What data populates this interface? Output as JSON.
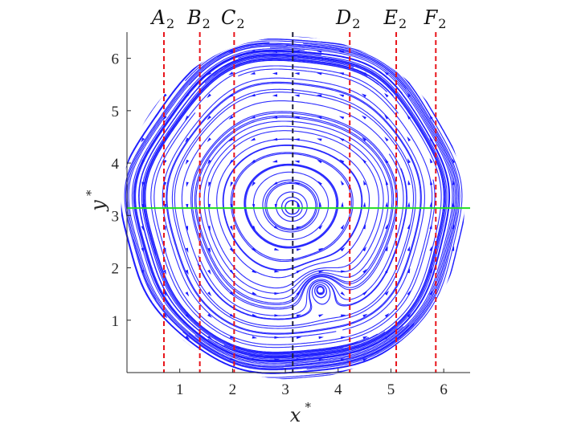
{
  "chart_data": {
    "type": "streamline",
    "xlabel": "x",
    "xlabel_superscript": "*",
    "ylabel": "y",
    "ylabel_superscript": "*",
    "xlim": [
      0,
      6.5
    ],
    "ylim": [
      0,
      6.5
    ],
    "xticks": [
      1,
      2,
      3,
      4,
      5,
      6
    ],
    "yticks": [
      1,
      2,
      3,
      4,
      5,
      6
    ],
    "grid": false,
    "streamline_color": "#1a1aff",
    "field_center": [
      3.14,
      3.14
    ],
    "field_radius": 3.25,
    "vortices": [
      {
        "center": [
          3.14,
          3.14
        ],
        "direction": "counterclockwise"
      },
      {
        "center": [
          3.65,
          1.62
        ],
        "direction": "clockwise"
      }
    ],
    "vertical_lines": [
      {
        "letter": "A",
        "sub": "2",
        "x": 0.7,
        "color": "#e8141a",
        "style": "dashed"
      },
      {
        "letter": "B",
        "sub": "2",
        "x": 1.38,
        "color": "#e8141a",
        "style": "dashed"
      },
      {
        "letter": "C",
        "sub": "2",
        "x": 2.03,
        "color": "#e8141a",
        "style": "dashed"
      },
      {
        "letter": "",
        "sub": "",
        "x": 3.14,
        "color": "#1f1f3a",
        "style": "dashed"
      },
      {
        "letter": "D",
        "sub": "2",
        "x": 4.22,
        "color": "#e8141a",
        "style": "dashed"
      },
      {
        "letter": "E",
        "sub": "2",
        "x": 5.1,
        "color": "#e8141a",
        "style": "dashed"
      },
      {
        "letter": "F",
        "sub": "2",
        "x": 5.85,
        "color": "#e8141a",
        "style": "dashed"
      }
    ],
    "horizontal_lines": [
      {
        "y": 3.14,
        "color": "#22dd22",
        "style": "solid"
      }
    ]
  }
}
